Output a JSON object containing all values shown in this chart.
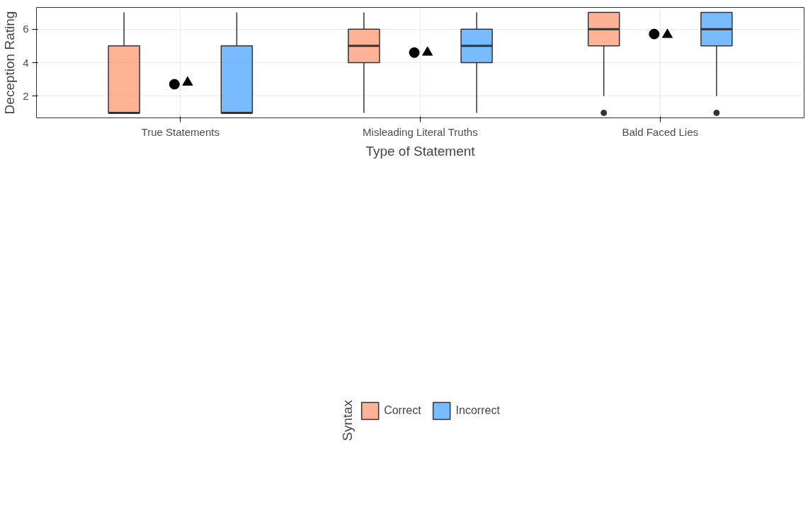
{
  "chart_data": {
    "type": "box",
    "xlabel": "Type of Statement",
    "ylabel": "Deception Rating",
    "legend_title": "Syntax",
    "categories": [
      "True Statements",
      "Misleading Literal Truths",
      "Bald Faced Lies"
    ],
    "ylim": [
      0.7,
      7.3
    ],
    "yticks": [
      2,
      4,
      6
    ],
    "grid": true,
    "legend": "bottom",
    "series": [
      {
        "name": "Correct",
        "color": "#ff7f50",
        "boxes": [
          {
            "low": 1,
            "q1": 1,
            "median": 1,
            "q3": 5,
            "high": 7
          },
          {
            "low": 1,
            "q1": 4,
            "median": 5,
            "q3": 6,
            "high": 7
          },
          {
            "low": 2,
            "q1": 5,
            "median": 6,
            "q3": 7,
            "high": 7,
            "outliers": [
              1
            ]
          }
        ]
      },
      {
        "name": "Incorrect",
        "color": "#1e90ff",
        "boxes": [
          {
            "low": 1,
            "q1": 1,
            "median": 1,
            "q3": 5,
            "high": 7
          },
          {
            "low": 1,
            "q1": 4,
            "median": 5,
            "q3": 6,
            "high": 7
          },
          {
            "low": 2,
            "q1": 5,
            "median": 6,
            "q3": 7,
            "high": 7,
            "outliers": [
              1
            ]
          }
        ]
      },
      {
        "type": "scatter",
        "marker": "circle",
        "color": "#000000",
        "x": [
          "True Statements",
          "Misleading Literal Truths",
          "Bald Faced Lies"
        ],
        "values": [
          2.71,
          4.6,
          5.71
        ]
      },
      {
        "type": "scatter",
        "marker": "triangle",
        "color": "#000000",
        "x": [
          "True Statements",
          "Misleading Literal Truths",
          "Bald Faced Lies"
        ],
        "values": [
          2.82,
          4.61,
          5.67
        ]
      }
    ]
  }
}
